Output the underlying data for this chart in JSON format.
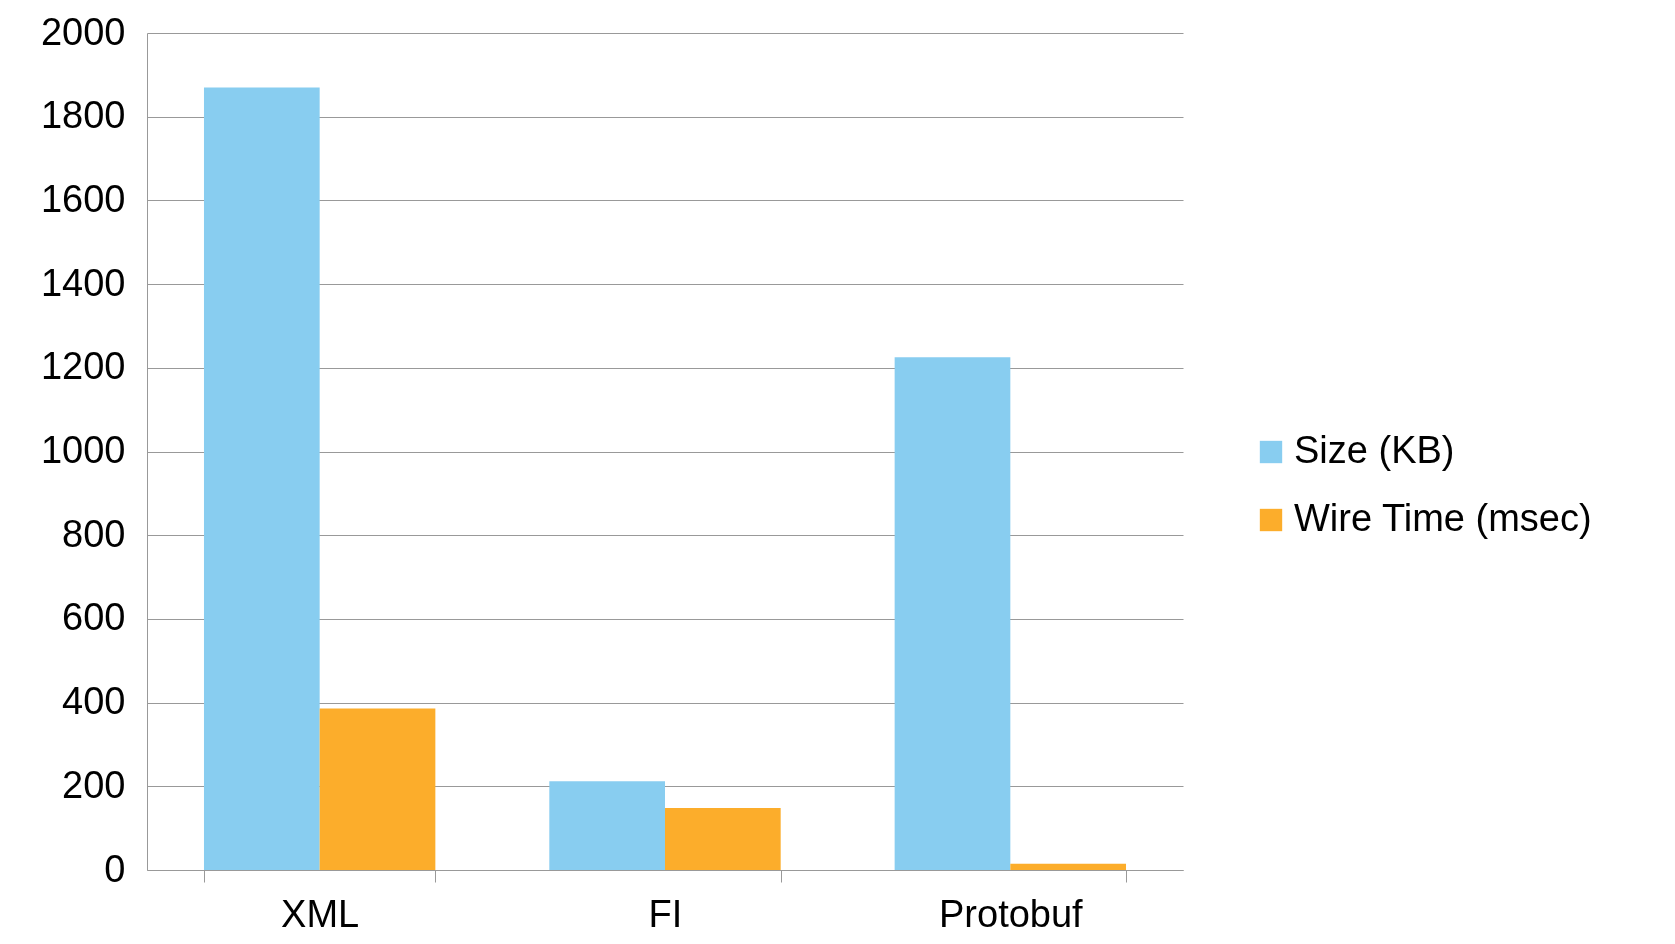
{
  "chart_data": {
    "type": "bar",
    "categories": [
      "XML",
      "FI",
      "Protobuf"
    ],
    "series": [
      {
        "name": "Size (KB)",
        "color": "#88cdf0",
        "values": [
          1870,
          212,
          1225
        ]
      },
      {
        "name": "Wire Time (msec)",
        "color": "#fcad2b",
        "values": [
          386,
          148,
          15
        ]
      }
    ],
    "ylim": [
      0,
      2000
    ],
    "yticks": [
      0,
      200,
      400,
      600,
      800,
      1000,
      1200,
      1400,
      1600,
      1800,
      2000
    ],
    "grid": "y",
    "legend": "right"
  }
}
